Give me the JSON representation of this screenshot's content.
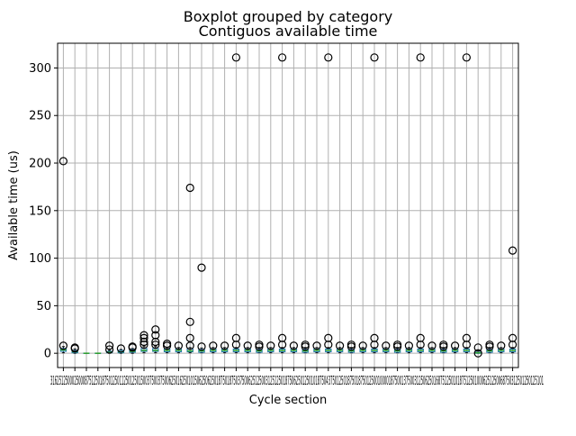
{
  "suptitle": "Boxplot grouped by category",
  "chart_data": {
    "type": "boxplot",
    "title": "Contiguos available time",
    "xlabel": "Cycle section",
    "ylabel": "Available time (us)",
    "ylim": [
      -15,
      326
    ],
    "yticks": [
      0,
      50,
      100,
      150,
      200,
      250,
      300
    ],
    "grid": true,
    "colors": {
      "box": "#1f77b4",
      "median": "#2ca02c",
      "whisker": "#000000",
      "flier": "#000000",
      "grid": "#b0b0b0"
    },
    "x_tick_text": "3162512500025000875125018750125011250125015003750037500625016250101506250625018750187503750062512500312512501875062501250101875043750125018750187501250010000187500137500312506250168751250101875125010006251250068750312501250125101",
    "groups": [
      {
        "q1": 2.0,
        "median": 3.5,
        "q3": 5.0,
        "whislo": 0.5,
        "whishi": 7.0,
        "fliers": [
          8,
          202
        ]
      },
      {
        "q1": 0.5,
        "median": 1.5,
        "q3": 3.0,
        "whislo": 0.0,
        "whishi": 4.5,
        "fliers": [
          5,
          6
        ]
      },
      {
        "q1": 0.0,
        "median": 0.0,
        "q3": 0.0,
        "whislo": 0.0,
        "whishi": 0.0,
        "fliers": []
      },
      {
        "q1": 0.0,
        "median": 0.0,
        "q3": 0.0,
        "whislo": 0.0,
        "whishi": 0.0,
        "fliers": []
      },
      {
        "q1": 0.5,
        "median": 1.0,
        "q3": 2.0,
        "whislo": 0.0,
        "whishi": 3.0,
        "fliers": [
          4,
          8
        ]
      },
      {
        "q1": 0.5,
        "median": 1.5,
        "q3": 3.0,
        "whislo": 0.0,
        "whishi": 4.0,
        "fliers": [
          5
        ]
      },
      {
        "q1": 1.0,
        "median": 2.0,
        "q3": 4.0,
        "whislo": 0.0,
        "whishi": 5.0,
        "fliers": [
          6,
          7
        ]
      },
      {
        "q1": 2.0,
        "median": 3.0,
        "q3": 5.0,
        "whislo": 0.5,
        "whishi": 7.0,
        "fliers": [
          9,
          12,
          16,
          19
        ]
      },
      {
        "q1": 2.0,
        "median": 3.0,
        "q3": 5.0,
        "whislo": 0.5,
        "whishi": 7.0,
        "fliers": [
          9,
          12,
          19,
          25
        ]
      },
      {
        "q1": 1.5,
        "median": 3.0,
        "q3": 4.5,
        "whislo": 0.5,
        "whishi": 6.0,
        "fliers": [
          8,
          10
        ]
      },
      {
        "q1": 1.5,
        "median": 3.0,
        "q3": 4.5,
        "whislo": 0.5,
        "whishi": 6.0,
        "fliers": [
          8
        ]
      },
      {
        "q1": 1.5,
        "median": 2.5,
        "q3": 4.5,
        "whislo": 0.5,
        "whishi": 6.0,
        "fliers": [
          8,
          16,
          33,
          174
        ]
      },
      {
        "q1": 1.0,
        "median": 2.5,
        "q3": 4.0,
        "whislo": 0.5,
        "whishi": 5.5,
        "fliers": [
          7,
          90
        ]
      },
      {
        "q1": 1.5,
        "median": 3.0,
        "q3": 4.5,
        "whislo": 0.5,
        "whishi": 6.0,
        "fliers": [
          8
        ]
      },
      {
        "q1": 1.5,
        "median": 3.0,
        "q3": 4.5,
        "whislo": 0.5,
        "whishi": 6.0,
        "fliers": [
          8
        ]
      },
      {
        "q1": 1.5,
        "median": 3.0,
        "q3": 4.5,
        "whislo": 0.5,
        "whishi": 6.0,
        "fliers": [
          9,
          16,
          311
        ]
      },
      {
        "q1": 1.5,
        "median": 3.0,
        "q3": 4.5,
        "whislo": 0.5,
        "whishi": 6.0,
        "fliers": [
          8
        ]
      },
      {
        "q1": 1.0,
        "median": 2.5,
        "q3": 4.0,
        "whislo": 0.5,
        "whishi": 6.0,
        "fliers": [
          7,
          9
        ]
      },
      {
        "q1": 1.5,
        "median": 3.0,
        "q3": 4.5,
        "whislo": 0.5,
        "whishi": 6.0,
        "fliers": [
          8
        ]
      },
      {
        "q1": 1.5,
        "median": 3.0,
        "q3": 4.5,
        "whislo": 0.5,
        "whishi": 6.0,
        "fliers": [
          9,
          16,
          311
        ]
      },
      {
        "q1": 1.5,
        "median": 3.0,
        "q3": 4.5,
        "whislo": 0.5,
        "whishi": 6.0,
        "fliers": [
          8
        ]
      },
      {
        "q1": 1.0,
        "median": 2.5,
        "q3": 4.0,
        "whislo": 0.5,
        "whishi": 6.0,
        "fliers": [
          7,
          9
        ]
      },
      {
        "q1": 1.5,
        "median": 3.0,
        "q3": 4.5,
        "whislo": 0.5,
        "whishi": 6.0,
        "fliers": [
          8
        ]
      },
      {
        "q1": 1.5,
        "median": 3.0,
        "q3": 4.5,
        "whislo": 0.5,
        "whishi": 6.0,
        "fliers": [
          9,
          16,
          311
        ]
      },
      {
        "q1": 1.5,
        "median": 3.0,
        "q3": 4.5,
        "whislo": 0.5,
        "whishi": 6.0,
        "fliers": [
          8
        ]
      },
      {
        "q1": 1.0,
        "median": 2.5,
        "q3": 4.0,
        "whislo": 0.5,
        "whishi": 6.0,
        "fliers": [
          7,
          9
        ]
      },
      {
        "q1": 1.5,
        "median": 3.0,
        "q3": 4.5,
        "whislo": 0.5,
        "whishi": 6.0,
        "fliers": [
          8
        ]
      },
      {
        "q1": 1.5,
        "median": 3.0,
        "q3": 4.5,
        "whislo": 0.5,
        "whishi": 6.0,
        "fliers": [
          9,
          16,
          311
        ]
      },
      {
        "q1": 1.5,
        "median": 3.0,
        "q3": 4.5,
        "whislo": 0.5,
        "whishi": 6.0,
        "fliers": [
          8
        ]
      },
      {
        "q1": 1.0,
        "median": 2.5,
        "q3": 4.0,
        "whislo": 0.5,
        "whishi": 6.0,
        "fliers": [
          7,
          9
        ]
      },
      {
        "q1": 1.5,
        "median": 3.0,
        "q3": 4.5,
        "whislo": 0.5,
        "whishi": 6.0,
        "fliers": [
          8
        ]
      },
      {
        "q1": 1.5,
        "median": 3.0,
        "q3": 4.5,
        "whislo": 0.5,
        "whishi": 6.0,
        "fliers": [
          9,
          16,
          311
        ]
      },
      {
        "q1": 1.5,
        "median": 3.0,
        "q3": 4.5,
        "whislo": 0.5,
        "whishi": 6.0,
        "fliers": [
          8
        ]
      },
      {
        "q1": 1.0,
        "median": 2.5,
        "q3": 4.0,
        "whislo": 0.5,
        "whishi": 6.0,
        "fliers": [
          7,
          9
        ]
      },
      {
        "q1": 1.5,
        "median": 3.0,
        "q3": 4.5,
        "whislo": 0.5,
        "whishi": 6.0,
        "fliers": [
          8
        ]
      },
      {
        "q1": 1.5,
        "median": 3.0,
        "q3": 4.5,
        "whislo": 0.5,
        "whishi": 6.0,
        "fliers": [
          9,
          16,
          311
        ]
      },
      {
        "q1": 0.0,
        "median": 0.5,
        "q3": 2.0,
        "whislo": 0.0,
        "whishi": 3.0,
        "fliers": [
          0,
          6
        ]
      },
      {
        "q1": 1.0,
        "median": 2.5,
        "q3": 4.0,
        "whislo": 0.5,
        "whishi": 6.0,
        "fliers": [
          7,
          9
        ]
      },
      {
        "q1": 1.5,
        "median": 3.0,
        "q3": 4.5,
        "whislo": 0.5,
        "whishi": 6.0,
        "fliers": [
          8
        ]
      },
      {
        "q1": 1.5,
        "median": 3.0,
        "q3": 4.5,
        "whislo": 0.5,
        "whishi": 6.0,
        "fliers": [
          9,
          16,
          108
        ]
      }
    ]
  }
}
